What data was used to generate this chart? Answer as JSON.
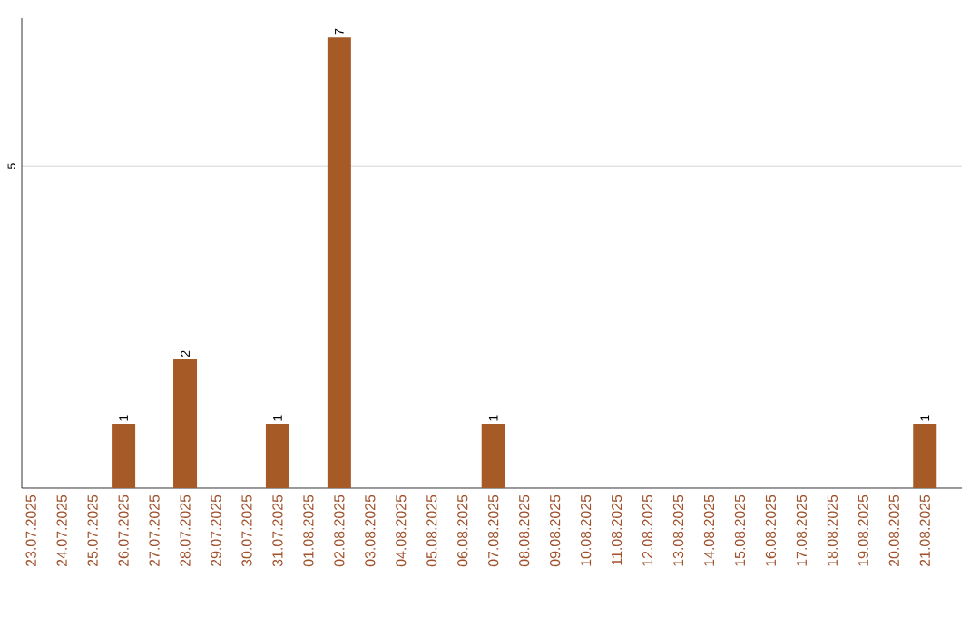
{
  "chart_data": {
    "type": "bar",
    "categories": [
      "23.07.2025",
      "24.07.2025",
      "25.07.2025",
      "26.07.2025",
      "27.07.2025",
      "28.07.2025",
      "29.07.2025",
      "30.07.2025",
      "31.07.2025",
      "01.08.2025",
      "02.08.2025",
      "03.08.2025",
      "04.08.2025",
      "05.08.2025",
      "06.08.2025",
      "07.08.2025",
      "08.08.2025",
      "09.08.2025",
      "10.08.2025",
      "11.08.2025",
      "12.08.2025",
      "13.08.2025",
      "14.08.2025",
      "15.08.2025",
      "16.08.2025",
      "17.08.2025",
      "18.08.2025",
      "19.08.2025",
      "20.08.2025",
      "21.08.2025"
    ],
    "values": [
      0,
      0,
      0,
      1,
      0,
      2,
      0,
      0,
      1,
      0,
      7,
      0,
      0,
      0,
      0,
      1,
      0,
      0,
      0,
      0,
      0,
      0,
      0,
      0,
      0,
      0,
      0,
      0,
      0,
      1
    ],
    "value_labels": [
      null,
      null,
      null,
      "1",
      null,
      "2",
      null,
      null,
      "1",
      null,
      "7",
      null,
      null,
      null,
      null,
      "1",
      null,
      null,
      null,
      null,
      null,
      null,
      null,
      null,
      null,
      null,
      null,
      null,
      null,
      "1"
    ],
    "color": "#a65a25",
    "ylim": [
      0,
      7.3
    ],
    "yticks": [
      5
    ],
    "grid": "y"
  }
}
